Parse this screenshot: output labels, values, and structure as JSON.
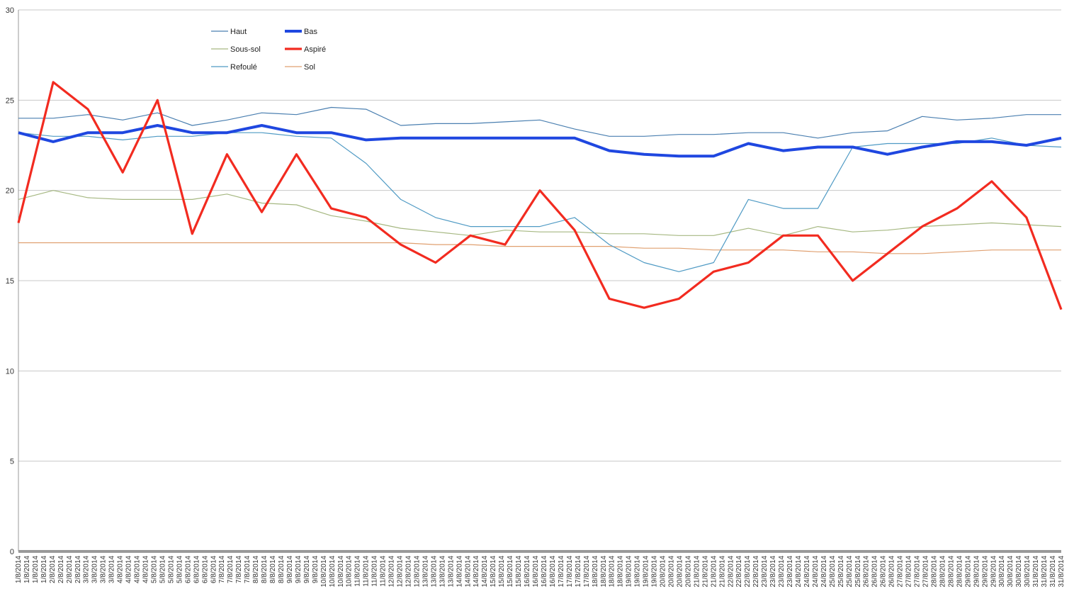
{
  "chart_data": {
    "type": "line",
    "title": "",
    "xlabel": "",
    "ylabel": "",
    "ylim": [
      0,
      30
    ],
    "yticks": [
      0,
      5,
      10,
      15,
      20,
      25,
      30
    ],
    "grid": "horizontal",
    "legend_placement": "top-left",
    "legend_layout": "3 rows x 2 columns",
    "x_tick_dates": [
      "1/8/2014",
      "2/8/2014",
      "3/8/2014",
      "4/8/2014",
      "5/8/2014",
      "6/8/2014",
      "7/8/2014",
      "8/8/2014",
      "9/8/2014",
      "10/8/2014",
      "11/8/2014",
      "12/8/2014",
      "13/8/2014",
      "14/8/2014",
      "15/8/2014",
      "16/8/2014",
      "17/8/2014",
      "18/8/2014",
      "19/8/2014",
      "20/8/2014",
      "21/8/2014",
      "22/8/2014",
      "23/8/2014",
      "24/8/2014",
      "25/8/2014",
      "26/8/2014",
      "27/8/2014",
      "28/8/2014",
      "29/8/2014",
      "30/8/2014",
      "31/8/2014"
    ],
    "x_ticks_per_date": 4,
    "x": [
      "1/8/2014",
      "2/8/2014",
      "3/8/2014",
      "4/8/2014",
      "5/8/2014",
      "6/8/2014",
      "7/8/2014",
      "8/8/2014",
      "9/8/2014",
      "10/8/2014",
      "11/8/2014",
      "12/8/2014",
      "13/8/2014",
      "14/8/2014",
      "15/8/2014",
      "16/8/2014",
      "17/8/2014",
      "18/8/2014",
      "19/8/2014",
      "20/8/2014",
      "21/8/2014",
      "22/8/2014",
      "23/8/2014",
      "24/8/2014",
      "25/8/2014",
      "26/8/2014",
      "27/8/2014",
      "28/8/2014",
      "29/8/2014",
      "30/8/2014",
      "31/8/2014"
    ],
    "series": [
      {
        "name": "Haut",
        "color": "#4a7fb0",
        "stroke_width": 1.2,
        "values": [
          24.0,
          24.0,
          24.2,
          23.9,
          24.3,
          23.6,
          23.9,
          24.3,
          24.2,
          24.6,
          24.5,
          23.6,
          23.7,
          23.7,
          23.8,
          23.9,
          23.4,
          23.0,
          23.0,
          23.1,
          23.1,
          23.2,
          23.2,
          22.9,
          23.2,
          23.3,
          24.1,
          23.9,
          24.0,
          24.2,
          24.2
        ]
      },
      {
        "name": "Bas",
        "color": "#1f47e0",
        "stroke_width": 4,
        "values": [
          23.2,
          22.7,
          23.2,
          23.2,
          23.6,
          23.2,
          23.2,
          23.6,
          23.2,
          23.2,
          22.8,
          22.9,
          22.9,
          22.9,
          22.9,
          22.9,
          22.9,
          22.2,
          22.0,
          21.9,
          21.9,
          22.6,
          22.2,
          22.4,
          22.4,
          22.0,
          22.4,
          22.7,
          22.7,
          22.5,
          22.9
        ]
      },
      {
        "name": "Sous-sol",
        "color": "#a6b882",
        "stroke_width": 1.2,
        "values": [
          19.5,
          20.0,
          19.6,
          19.5,
          19.5,
          19.5,
          19.8,
          19.3,
          19.2,
          18.6,
          18.3,
          17.9,
          17.7,
          17.5,
          17.8,
          17.7,
          17.7,
          17.6,
          17.6,
          17.5,
          17.5,
          17.9,
          17.5,
          18.0,
          17.7,
          17.8,
          18.0,
          18.1,
          18.2,
          18.1,
          18.0
        ]
      },
      {
        "name": "Aspiré",
        "color": "#f22b20",
        "stroke_width": 3.2,
        "values": [
          18.2,
          26.0,
          24.5,
          21.0,
          25.0,
          17.6,
          22.0,
          18.8,
          22.0,
          19.0,
          18.5,
          17.0,
          16.0,
          17.5,
          17.0,
          20.0,
          17.8,
          14.0,
          13.5,
          14.0,
          15.5,
          16.0,
          17.5,
          17.5,
          15.0,
          16.5,
          18.0,
          19.0,
          20.5,
          18.5,
          13.4
        ]
      },
      {
        "name": "Refoulé",
        "color": "#4f9ac4",
        "stroke_width": 1.2,
        "values": [
          23.2,
          23.0,
          23.0,
          22.8,
          23.0,
          23.0,
          23.2,
          23.2,
          23.0,
          22.9,
          21.5,
          19.5,
          18.5,
          18.0,
          18.0,
          18.0,
          18.5,
          17.0,
          16.0,
          15.5,
          16.0,
          19.5,
          19.0,
          19.0,
          22.4,
          22.6,
          22.6,
          22.6,
          22.9,
          22.5,
          22.4
        ]
      },
      {
        "name": "Sol",
        "color": "#e0a070",
        "stroke_width": 1.2,
        "values": [
          17.1,
          17.1,
          17.1,
          17.1,
          17.1,
          17.1,
          17.1,
          17.1,
          17.1,
          17.1,
          17.1,
          17.1,
          17.0,
          17.0,
          16.9,
          16.9,
          16.9,
          16.9,
          16.8,
          16.8,
          16.7,
          16.7,
          16.7,
          16.6,
          16.6,
          16.5,
          16.5,
          16.6,
          16.7,
          16.7,
          16.7
        ]
      }
    ]
  }
}
